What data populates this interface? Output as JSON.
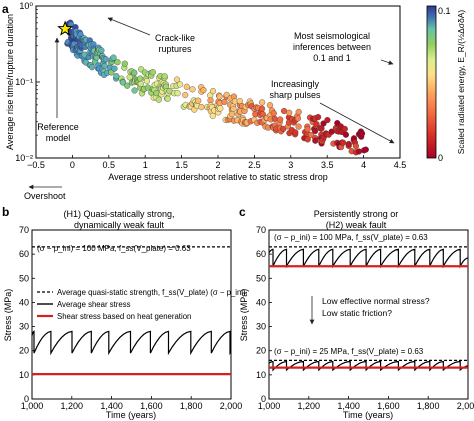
{
  "panels": {
    "a": {
      "letter": "a",
      "xlabel": "Average stress undershoot relative to static stress drop",
      "ylabel": "Average rise time/rupture duration",
      "xticks": [
        "−0.5",
        "0",
        "0.5",
        "1",
        "1.5",
        "2",
        "2.5",
        "3",
        "3.5",
        "4",
        "4.5"
      ],
      "yticks": [
        "10⁰",
        "10⁻¹",
        "10⁻²"
      ],
      "annotations": {
        "crack": [
          "Crack-like",
          "ruptures"
        ],
        "seismo": [
          "Most seismological",
          "inferences between",
          "0.1 and 1"
        ],
        "pulses": [
          "Increasingly",
          "sharp pulses"
        ],
        "reference": [
          "Reference",
          "model"
        ],
        "overshoot": "Overshoot"
      },
      "colorbar": {
        "label": "Scaled radiated energy, E_R/(½ΔσδA)",
        "ticks": [
          "0.1",
          "0"
        ]
      }
    },
    "b": {
      "letter": "b",
      "title": [
        "(H1) Quasi-statically strong,",
        "dynamically weak fault"
      ],
      "xlabel": "Time (years)",
      "ylabel": "Stress (MPa)",
      "xticks": [
        "1,000",
        "1,200",
        "1,400",
        "1,600",
        "1,800",
        "2,000"
      ],
      "yticks": [
        "0",
        "10",
        "20",
        "30",
        "40",
        "50",
        "60",
        "70"
      ],
      "param": "(σ − p_ini) = 100 MPa, f_ss(V_plate) = 0.63",
      "legend": [
        "Average quasi-static strength, f_ss(V_plate) (σ − p_ini)",
        "Average shear stress",
        "Shear stress based on heat generation"
      ]
    },
    "c": {
      "letter": "c",
      "title": [
        "Persistently strong or",
        "(H2) weak fault"
      ],
      "xlabel": "Time (years)",
      "ylabel": "Stress (MPa)",
      "xticks": [
        "1,000",
        "1,200",
        "1,400",
        "1,600",
        "1,800",
        "2,000"
      ],
      "yticks": [
        "0",
        "10",
        "20",
        "30",
        "40",
        "50",
        "60",
        "70"
      ],
      "param_top": "(σ − p_ini) = 100 MPa, f_ss(V_plate) = 0.63",
      "question": [
        "Low effective normal stress?",
        "Low static friction?"
      ],
      "param_bottom": "(σ − p_ini) = 25 MPa, f_ss(V_plate) = 0.63"
    }
  },
  "colors": {
    "strength": "#000000",
    "shear": "#000000",
    "heat": "#d62020",
    "reference_star": "#ffe800",
    "colormap": [
      "#a50026",
      "#d73027",
      "#f46d43",
      "#fdae61",
      "#fee08b",
      "#d9ef8b",
      "#91cf60",
      "#66c2a5",
      "#4f9bd0",
      "#3e6fb2",
      "#313695"
    ]
  },
  "chart_data": [
    {
      "panel": "a",
      "type": "scatter",
      "x_scale": "linear",
      "y_scale": "log",
      "xlim": [
        -0.5,
        4.5
      ],
      "ylim": [
        0.01,
        1
      ],
      "colorbar_range": [
        0,
        0.1
      ],
      "trend": [
        [
          -0.1,
          0.5,
          0.095
        ],
        [
          0.0,
          0.4,
          0.09
        ],
        [
          0.1,
          0.3,
          0.085
        ],
        [
          0.2,
          0.25,
          0.08
        ],
        [
          0.5,
          0.16,
          0.07
        ],
        [
          0.8,
          0.12,
          0.06
        ],
        [
          1.0,
          0.1,
          0.055
        ],
        [
          1.5,
          0.07,
          0.045
        ],
        [
          2.0,
          0.05,
          0.035
        ],
        [
          2.5,
          0.038,
          0.025
        ],
        [
          3.0,
          0.03,
          0.018
        ],
        [
          3.5,
          0.022,
          0.01
        ],
        [
          4.0,
          0.015,
          0.004
        ]
      ],
      "reference_model": {
        "x": -0.1,
        "y": 0.5
      }
    },
    {
      "panel": "b",
      "type": "line",
      "x_range": [
        1000,
        2000
      ],
      "ylim": [
        0,
        70
      ],
      "series": [
        {
          "name": "Average quasi-static strength, f_ss(V_plate) (σ − p_ini)",
          "style": "dashed",
          "value": 63
        },
        {
          "name": "Average shear stress",
          "style": "sawtooth",
          "min": 19,
          "max": 28,
          "period_years": 100,
          "first_event_year": 1010
        },
        {
          "name": "Shear stress based on heat generation",
          "style": "flat",
          "value": 10.3
        }
      ]
    },
    {
      "panel": "c",
      "type": "line",
      "x_range": [
        1000,
        2000
      ],
      "ylim": [
        0,
        70
      ],
      "series": [
        {
          "style": "dashed",
          "value": 63
        },
        {
          "style": "sawtooth",
          "min": 55,
          "max": 62,
          "period_years": 80
        },
        {
          "style": "flat",
          "value": 55
        },
        {
          "style": "dashed",
          "value": 16
        },
        {
          "style": "sawtooth",
          "min": 12,
          "max": 15.5,
          "period_years": 80
        },
        {
          "style": "flat",
          "value": 13
        }
      ]
    }
  ]
}
